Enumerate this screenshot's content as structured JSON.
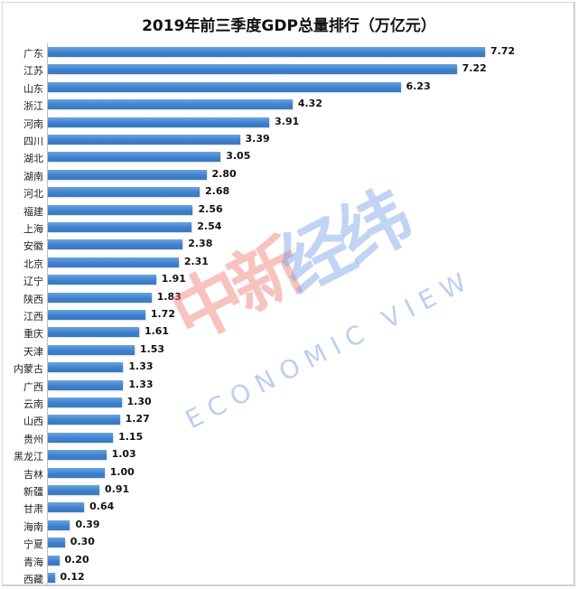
{
  "chart_data": {
    "type": "bar",
    "orientation": "horizontal",
    "title": "2019年前三季度GDP总量排行（万亿元）",
    "xlabel": "",
    "ylabel": "",
    "unit": "万亿元",
    "grid": false,
    "legend": null,
    "data_labels": true,
    "bar_color": "#3d7fcb",
    "categories": [
      "广东",
      "江苏",
      "山东",
      "浙江",
      "河南",
      "四川",
      "湖北",
      "湖南",
      "河北",
      "福建",
      "上海",
      "安徽",
      "北京",
      "辽宁",
      "陕西",
      "江西",
      "重庆",
      "天津",
      "内蒙古",
      "广西",
      "云南",
      "山西",
      "贵州",
      "黑龙江",
      "吉林",
      "新疆",
      "甘肃",
      "海南",
      "宁夏",
      "青海",
      "西藏"
    ],
    "values": [
      7.72,
      7.22,
      6.23,
      4.32,
      3.91,
      3.39,
      3.05,
      2.8,
      2.68,
      2.56,
      2.54,
      2.38,
      2.31,
      1.91,
      1.83,
      1.72,
      1.61,
      1.53,
      1.33,
      1.33,
      1.3,
      1.27,
      1.15,
      1.03,
      1.0,
      0.91,
      0.64,
      0.39,
      0.3,
      0.2,
      0.12
    ],
    "value_labels": [
      "7.72",
      "7.22",
      "6.23",
      "4.32",
      "3.91",
      "3.39",
      "3.05",
      "2.80",
      "2.68",
      "2.56",
      "2.54",
      "2.38",
      "2.31",
      "1.91",
      "1.83",
      "1.72",
      "1.61",
      "1.53",
      "1.33",
      "1.33",
      "1.30",
      "1.27",
      "1.15",
      "1.03",
      "1.00",
      "0.91",
      "0.64",
      "0.39",
      "0.30",
      "0.20",
      "0.12"
    ]
  },
  "watermark": {
    "cn_part1": "中新",
    "cn_part2": "经纬",
    "en": "ECONOMIC VIEW"
  }
}
